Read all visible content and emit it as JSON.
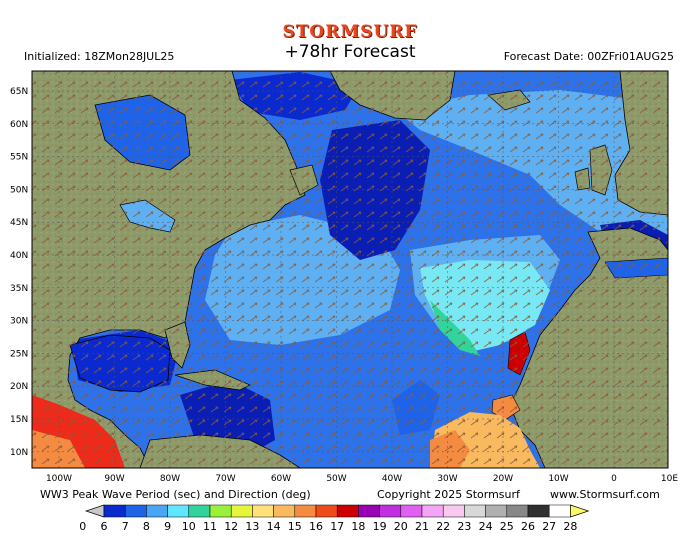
{
  "header": {
    "brand": "STORMSURF",
    "title": "+78hr Forecast",
    "initialized": "Initialized: 18ZMon28JUL25",
    "forecast_date": "Forecast Date: 00ZFri01AUG25"
  },
  "footer": {
    "product": "WW3 Peak Wave Period (sec) and Direction (deg)",
    "copyright": "Copyright 2025 Stormsurf",
    "site": "www.Stormsurf.com"
  },
  "axes": {
    "lat_labels": [
      "65N",
      "60N",
      "55N",
      "50N",
      "45N",
      "40N",
      "35N",
      "30N",
      "25N",
      "20N",
      "15N",
      "10N"
    ],
    "lon_labels": [
      "100W",
      "90W",
      "80W",
      "70W",
      "60W",
      "50W",
      "40W",
      "30W",
      "20W",
      "10W",
      "0",
      "10E"
    ]
  },
  "colorbar": {
    "labels": [
      "0",
      "6",
      "7",
      "8",
      "9",
      "10",
      "11",
      "12",
      "13",
      "14",
      "15",
      "16",
      "17",
      "18",
      "19",
      "20",
      "21",
      "22",
      "23",
      "24",
      "25",
      "26",
      "27",
      "28"
    ],
    "colors": [
      "#1010b0",
      "#0a2ad0",
      "#1e63e8",
      "#4aa6f5",
      "#60e6ff",
      "#33d49c",
      "#9af03a",
      "#e6f43a",
      "#ffe07a",
      "#f9b95e",
      "#f48b40",
      "#ee4a1a",
      "#cc0000",
      "#9a00b4",
      "#c030e0",
      "#e060f0",
      "#f4a6f4",
      "#f8c8f0",
      "#d8d8d8",
      "#b0b0b0",
      "#888888",
      "#303030",
      "#ffffff",
      "#f8f86a"
    ]
  },
  "land_color": "#8f9a6a",
  "ocean_colors": {
    "deep": "#0a1eb4",
    "mid": "#2e72ea",
    "light": "#5fb0f2",
    "cyan": "#78e8f4"
  }
}
